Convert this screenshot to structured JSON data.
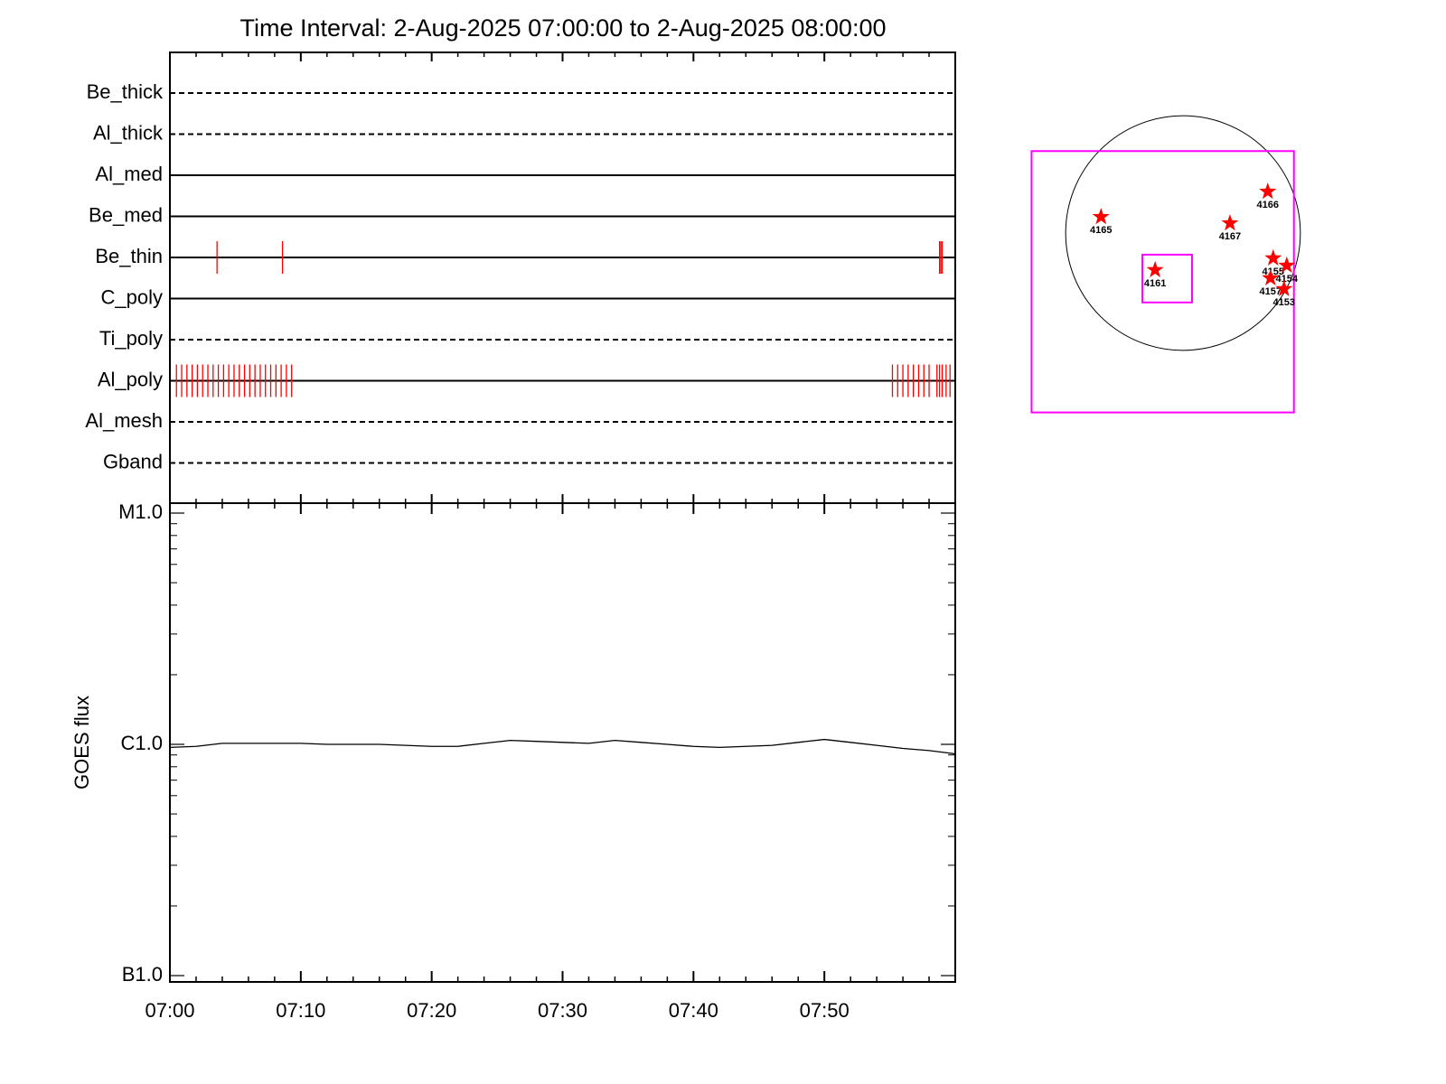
{
  "chart_data": [
    {
      "type": "timeline",
      "title": "Time Interval:  2-Aug-2025 07:00:00 to  2-Aug-2025 08:00:00",
      "categories": [
        "Be_thick",
        "Al_thick",
        "Al_med",
        "Be_med",
        "Be_thin",
        "C_poly",
        "Ti_poly",
        "Al_poly",
        "Al_mesh",
        "Gband"
      ],
      "line_styles": [
        "dashed",
        "dashed",
        "solid",
        "solid",
        "solid",
        "solid",
        "dashed",
        "solid",
        "dashed",
        "dashed"
      ],
      "events": [
        [],
        [],
        [],
        [],
        [
          3.6,
          8.6,
          58.8,
          58.9,
          59.0
        ],
        [],
        [],
        [
          0.5,
          0.9,
          1.3,
          1.7,
          2.1,
          2.5,
          2.9,
          3.3,
          3.7,
          4.1,
          4.5,
          4.9,
          5.3,
          5.7,
          6.1,
          6.5,
          6.9,
          7.3,
          7.7,
          8.1,
          8.5,
          8.9,
          9.3,
          55.2,
          55.6,
          56.0,
          56.4,
          56.8,
          57.2,
          57.6,
          58.0,
          58.6,
          58.8,
          59.0,
          59.3,
          59.6
        ],
        [],
        []
      ],
      "event_color": "#ff0000",
      "xlim": [
        0,
        60
      ],
      "xticks": [
        {
          "value": 0,
          "label": "07:00"
        },
        {
          "value": 10,
          "label": "07:10"
        },
        {
          "value": 20,
          "label": "07:20"
        },
        {
          "value": 30,
          "label": "07:30"
        },
        {
          "value": 40,
          "label": "07:40"
        },
        {
          "value": 50,
          "label": "07:50"
        }
      ],
      "xminor_ticks": [
        2,
        4,
        6,
        8,
        12,
        14,
        16,
        18,
        22,
        24,
        26,
        28,
        32,
        34,
        36,
        38,
        42,
        44,
        46,
        48,
        52,
        54,
        56,
        58
      ]
    },
    {
      "type": "line",
      "ylabel": "GOES flux",
      "log_scale": true,
      "color": "#000000",
      "x": [
        0,
        2,
        4,
        6,
        8,
        10,
        12,
        14,
        16,
        18,
        20,
        22,
        24,
        26,
        28,
        30,
        32,
        34,
        36,
        38,
        40,
        42,
        44,
        46,
        48,
        50,
        52,
        54,
        56,
        58,
        60
      ],
      "values": [
        9.7e-07,
        9.8e-07,
        1.01e-06,
        1.01e-06,
        1.01e-06,
        1.01e-06,
        1e-06,
        1e-06,
        1e-06,
        9.9e-07,
        9.8e-07,
        9.8e-07,
        1.01e-06,
        1.04e-06,
        1.03e-06,
        1.02e-06,
        1.01e-06,
        1.04e-06,
        1.02e-06,
        1e-06,
        9.8e-07,
        9.7e-07,
        9.8e-07,
        9.9e-07,
        1.02e-06,
        1.05e-06,
        1.02e-06,
        9.9e-07,
        9.6e-07,
        9.4e-07,
        9.1e-07
      ],
      "xlim": [
        0,
        60
      ],
      "ylim": [
        1e-07,
        1e-05
      ],
      "yticks": [
        {
          "value": 1e-07,
          "label": "B1.0"
        },
        {
          "value": 1e-06,
          "label": "C1.0"
        },
        {
          "value": 1e-05,
          "label": "M1.0"
        }
      ],
      "yminor_ticks": [
        2e-07,
        3e-07,
        4e-07,
        5e-07,
        6e-07,
        7e-07,
        8e-07,
        9e-07,
        2e-06,
        3e-06,
        4e-06,
        5e-06,
        6e-06,
        7e-06,
        8e-06,
        9e-06
      ]
    },
    {
      "type": "map",
      "xlim": [
        -1500,
        1500
      ],
      "ylim": [
        -1500,
        1500
      ],
      "disk_radius": 950,
      "disk_color": "#000000",
      "box_color": "#ff00ff",
      "boxes": [
        {
          "x": [
            -1226,
            898
          ],
          "y": [
            -1453,
            664
          ]
        },
        {
          "x": [
            -329,
            73
          ],
          "y": [
            -562,
            -175
          ]
        }
      ],
      "marker_color": "#ff0000",
      "points": [
        {
          "label": "4165",
          "x": -664,
          "y": 131
        },
        {
          "label": "4166",
          "x": 686,
          "y": 336
        },
        {
          "label": "4167",
          "x": 380,
          "y": 80
        },
        {
          "label": "4161",
          "x": -226,
          "y": -299
        },
        {
          "label": "4155",
          "x": 730,
          "y": -204
        },
        {
          "label": "4154",
          "x": 840,
          "y": -263
        },
        {
          "label": "4157",
          "x": 708,
          "y": -365
        },
        {
          "label": "4153",
          "x": 818,
          "y": -453
        }
      ]
    }
  ]
}
